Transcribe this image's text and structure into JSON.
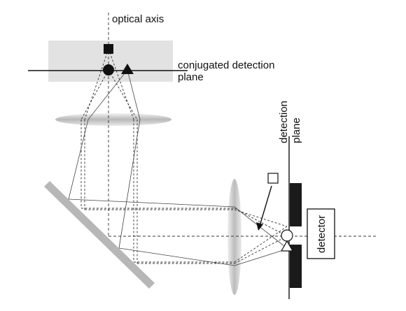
{
  "labels": {
    "optical_axis": "optical axis",
    "conj_line1": "conjugated detection",
    "conj_line2": "plane",
    "det_plane_line1": "detection",
    "det_plane_line2": "plane",
    "detector": "detector"
  },
  "colors": {
    "plane_box": "#e2e2e2",
    "lens": "#d3d3d3",
    "mirror": "#b7b7b7",
    "ink": "#111111"
  }
}
